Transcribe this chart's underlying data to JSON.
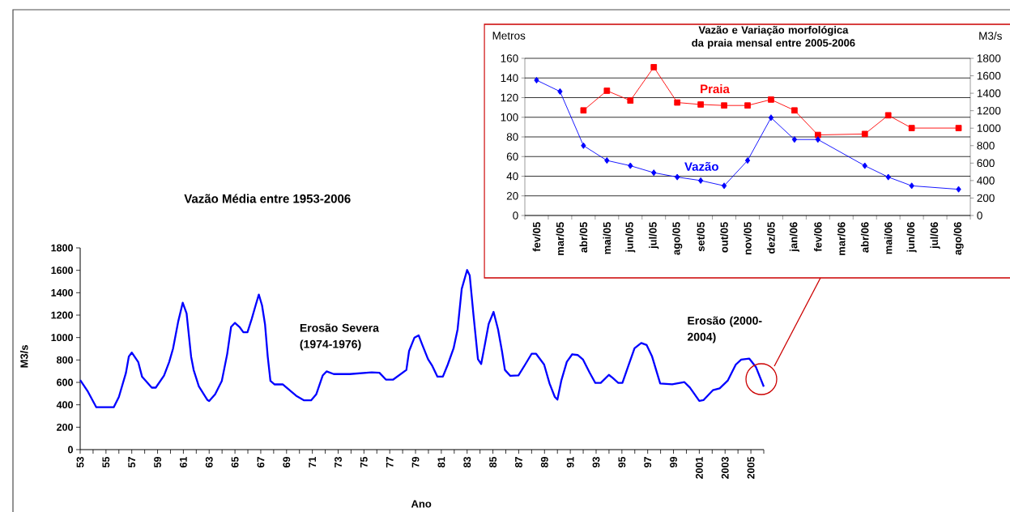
{
  "chart_data": [
    {
      "type": "line",
      "title": "Vazão Média entre 1953-2006",
      "xlabel": "Ano",
      "ylabel": "M3/s",
      "xlim": [
        1953,
        2006
      ],
      "ylim": [
        0,
        1800
      ],
      "yticks": [
        0,
        200,
        400,
        600,
        800,
        1000,
        1200,
        1400,
        1600,
        1800
      ],
      "xticks": [
        {
          "value": 1953,
          "label": "53"
        },
        {
          "value": 1954,
          "label": null
        },
        {
          "value": 1955,
          "label": "55"
        },
        {
          "value": 1956,
          "label": null
        },
        {
          "value": 1957,
          "label": "57"
        },
        {
          "value": 1958,
          "label": null
        },
        {
          "value": 1959,
          "label": "59"
        },
        {
          "value": 1960,
          "label": null
        },
        {
          "value": 1961,
          "label": "61"
        },
        {
          "value": 1962,
          "label": null
        },
        {
          "value": 1963,
          "label": "63"
        },
        {
          "value": 1964,
          "label": null
        },
        {
          "value": 1965,
          "label": "65"
        },
        {
          "value": 1966,
          "label": null
        },
        {
          "value": 1967,
          "label": "67"
        },
        {
          "value": 1968,
          "label": null
        },
        {
          "value": 1969,
          "label": "69"
        },
        {
          "value": 1970,
          "label": null
        },
        {
          "value": 1971,
          "label": "71"
        },
        {
          "value": 1972,
          "label": null
        },
        {
          "value": 1973,
          "label": "73"
        },
        {
          "value": 1974,
          "label": null
        },
        {
          "value": 1975,
          "label": "75"
        },
        {
          "value": 1976,
          "label": null
        },
        {
          "value": 1977,
          "label": "77"
        },
        {
          "value": 1978,
          "label": null
        },
        {
          "value": 1979,
          "label": "79"
        },
        {
          "value": 1980,
          "label": null
        },
        {
          "value": 1981,
          "label": "81"
        },
        {
          "value": 1982,
          "label": null
        },
        {
          "value": 1983,
          "label": "83"
        },
        {
          "value": 1984,
          "label": null
        },
        {
          "value": 1985,
          "label": "85"
        },
        {
          "value": 1986,
          "label": null
        },
        {
          "value": 1987,
          "label": "87"
        },
        {
          "value": 1988,
          "label": null
        },
        {
          "value": 1989,
          "label": "89"
        },
        {
          "value": 1990,
          "label": null
        },
        {
          "value": 1991,
          "label": "91"
        },
        {
          "value": 1992,
          "label": null
        },
        {
          "value": 1993,
          "label": "93"
        },
        {
          "value": 1994,
          "label": null
        },
        {
          "value": 1995,
          "label": "95"
        },
        {
          "value": 1996,
          "label": null
        },
        {
          "value": 1997,
          "label": "97"
        },
        {
          "value": 1998,
          "label": null
        },
        {
          "value": 1999,
          "label": "99"
        },
        {
          "value": 2000,
          "label": null
        },
        2001,
        {
          "value": 2002,
          "label": null
        },
        2003,
        {
          "value": 2004,
          "label": null
        },
        2005,
        {
          "value": 2006,
          "label": null
        }
      ],
      "x": [
        1953,
        1953.6,
        1954.25,
        1955.6,
        1956,
        1956.55,
        1956.77,
        1957,
        1957.5,
        1957.8,
        1958.55,
        1958.86,
        1959.5,
        1959.9,
        1960.2,
        1960.6,
        1960.95,
        1961.25,
        1961.6,
        1961.8,
        1962.2,
        1962.85,
        1963,
        1963.46,
        1963.98,
        1964.4,
        1964.7,
        1965,
        1965.35,
        1965.65,
        1965.97,
        1966.3,
        1966.6,
        1966.85,
        1967.1,
        1967.33,
        1967.54,
        1967.75,
        1968.06,
        1968.7,
        1969.74,
        1970.36,
        1970.9,
        1971.3,
        1971.8,
        1972.1,
        1972.66,
        1973.9,
        1975.6,
        1976.2,
        1976.7,
        1977.27,
        1978.29,
        1978.5,
        1978.92,
        1979.24,
        1979.55,
        1979.97,
        1980.3,
        1980.7,
        1981.12,
        1981.5,
        1981.95,
        1982.26,
        1982.58,
        1983,
        1983.2,
        1983.5,
        1983.84,
        1984.09,
        1984.36,
        1984.67,
        1985.05,
        1985.4,
        1985.7,
        1985.93,
        1986.35,
        1986.98,
        1987.5,
        1988,
        1988.35,
        1988.97,
        1989.39,
        1989.8,
        1990,
        1990.3,
        1990.73,
        1991.15,
        1991.57,
        1991.99,
        1992.5,
        1992.94,
        1993.36,
        1993.99,
        1994.3,
        1994.72,
        1995.04,
        1995.46,
        1995.98,
        1996.5,
        1996.92,
        1997.34,
        1997.97,
        1998.9,
        1999.85,
        2000.27,
        2001,
        2001.32,
        2002.05,
        2002.58,
        2003.2,
        2003.83,
        2004.25,
        2004.88,
        2005.4,
        2006
      ],
      "series": [
        {
          "color": "#0000ff",
          "values": [
            620,
            517,
            378,
            378,
            470,
            686,
            830,
            866,
            782,
            650,
            553,
            553,
            660,
            782,
            902,
            1143,
            1311,
            1215,
            830,
            710,
            565,
            445,
            433,
            493,
            613,
            854,
            1095,
            1131,
            1095,
            1047,
            1047,
            1167,
            1287,
            1383,
            1287,
            1119,
            830,
            613,
            582,
            582,
            481,
            440,
            440,
            493,
            661,
            698,
            674,
            674,
            690,
            686,
            625,
            625,
            711,
            880,
            1000,
            1020,
            928,
            807,
            747,
            651,
            651,
            759,
            904,
            1072,
            1434,
            1603,
            1555,
            1193,
            807,
            764,
            928,
            1121,
            1229,
            1072,
            880,
            711,
            658,
            663,
            759,
            855,
            855,
            759,
            590,
            470,
            446,
            615,
            783,
            851,
            844,
            803,
            687,
            595,
            595,
            667,
            639,
            595,
            595,
            735,
            904,
            952,
            933,
            831,
            590,
            583,
            602,
            554,
            434,
            441,
            530,
            547,
            615,
            759,
            803,
            812,
            735,
            562
          ]
        }
      ],
      "annotations": [
        "Erosão Severa (1974-1976)",
        "Erosão (2000-2004)"
      ],
      "grid": false,
      "marker": "none"
    },
    {
      "type": "line",
      "title": "Vazão e Variação morfológica da praia mensal entre 2005-2006",
      "ylabel": "Metros",
      "y2label": "M3/s",
      "categories": [
        "fev/05",
        "mar/05",
        "abr/05",
        "mai/05",
        "jun/05",
        "jul/05",
        "ago/05",
        "set/05",
        "out/05",
        "nov/05",
        "dez/05",
        "jan/06",
        "fev/06",
        "mar/06",
        "abr/06",
        "mai/06",
        "jun/06",
        "jul/06",
        "ago/06"
      ],
      "ylim": [
        0,
        160
      ],
      "yticks": [
        0,
        20,
        40,
        60,
        80,
        100,
        120,
        140,
        160
      ],
      "y2lim": [
        0,
        1800
      ],
      "y2ticks": [
        0,
        200,
        400,
        600,
        800,
        1000,
        1200,
        1400,
        1600,
        1800
      ],
      "series": [
        {
          "name": "Praia",
          "color": "#ff0000",
          "marker": "square",
          "values": [
            null,
            null,
            107,
            127,
            117,
            151,
            115,
            113,
            112,
            112,
            118,
            107,
            82,
            null,
            83,
            102,
            89,
            null,
            89
          ]
        },
        {
          "name": "Vazão",
          "color": "#0000ff",
          "marker": "diamond",
          "axis": "y2",
          "values": [
            1550,
            1420,
            800,
            630,
            570,
            490,
            440,
            400,
            340,
            630,
            1120,
            870,
            870,
            null,
            570,
            440,
            340,
            null,
            300
          ]
        }
      ],
      "grid": "y"
    }
  ]
}
